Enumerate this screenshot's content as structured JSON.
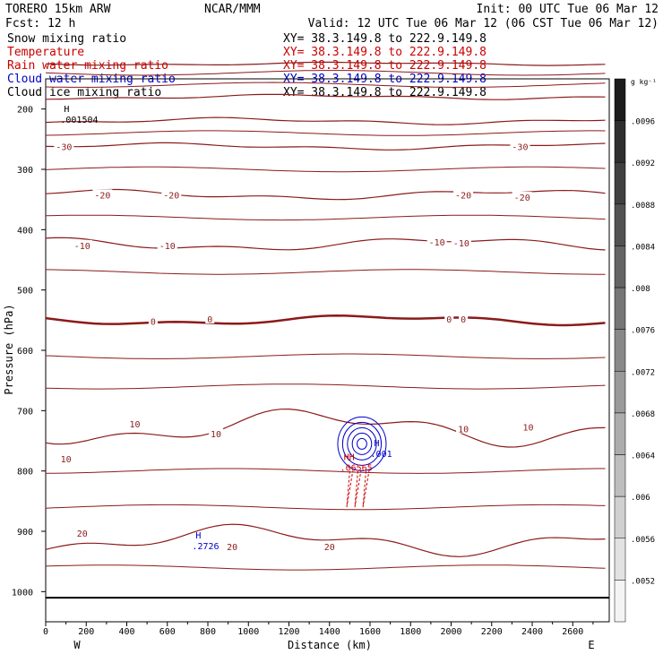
{
  "header": {
    "model": "TORERO  15km ARW",
    "institution": "NCAR/MMM",
    "init": "Init: 00 UTC Tue 06 Mar 12",
    "fcst": "Fcst:   12 h",
    "valid": "Valid: 12 UTC Tue 06 Mar 12 (06 CST Tue 06 Mar 12)"
  },
  "fields": [
    {
      "name": "Snow mixing ratio",
      "xy": "",
      "color": "#000000"
    },
    {
      "name": "Temperature",
      "xy": "XY=  38.3.149.8 to 222.9.149.8",
      "color": "#cc0000"
    },
    {
      "name": "Rain water mixing ratio",
      "xy": "XY=  38.3.149.8 to 222.9.149.8",
      "color": "#cc0000"
    },
    {
      "name": "Cloud water mixing ratio",
      "xy": "XY=  38.3.149.8 to 222.9.149.8",
      "color": "#0000cc"
    },
    {
      "name": "Cloud ice mixing ratio",
      "xy": "XY=  38.3.149.8 to 222.9.149.8",
      "color": "#000000"
    }
  ],
  "first_xy": "XY=  38.3.149.8 to 222.9.149.8",
  "chart_data": {
    "type": "cross-section contour",
    "xlabel": "Distance (km)",
    "ylabel": "Pressure (hPa)",
    "x_ticks": [
      0,
      200,
      400,
      600,
      800,
      1000,
      1200,
      1400,
      1600,
      1800,
      2000,
      2200,
      2400,
      2600
    ],
    "xlim": [
      0,
      2780
    ],
    "y_ticks": [
      200,
      300,
      400,
      500,
      600,
      700,
      800,
      900,
      1000
    ],
    "ylim": [
      1050,
      150
    ],
    "x_end_labels": [
      "W",
      "E"
    ],
    "temperature_labels": [
      {
        "text": "-30",
        "x": 90,
        "p": 262
      },
      {
        "text": "-30",
        "x": 2340,
        "p": 262
      },
      {
        "text": "-20",
        "x": 280,
        "p": 342
      },
      {
        "text": "-20",
        "x": 620,
        "p": 342
      },
      {
        "text": "-20",
        "x": 2060,
        "p": 342
      },
      {
        "text": "-20",
        "x": 2350,
        "p": 346
      },
      {
        "text": "-10",
        "x": 180,
        "p": 426
      },
      {
        "text": "-10",
        "x": 600,
        "p": 426
      },
      {
        "text": "-10",
        "x": 1930,
        "p": 420
      },
      {
        "text": "-10",
        "x": 2050,
        "p": 422
      },
      {
        "text": "0",
        "x": 530,
        "p": 552
      },
      {
        "text": "0",
        "x": 810,
        "p": 548
      },
      {
        "text": "0",
        "x": 1990,
        "p": 548
      },
      {
        "text": "0",
        "x": 2060,
        "p": 548
      },
      {
        "text": "10",
        "x": 440,
        "p": 722
      },
      {
        "text": "10",
        "x": 840,
        "p": 738
      },
      {
        "text": "10",
        "x": 2060,
        "p": 730
      },
      {
        "text": "10",
        "x": 2380,
        "p": 727
      },
      {
        "text": "10",
        "x": 100,
        "p": 780
      },
      {
        "text": "20",
        "x": 180,
        "p": 903
      },
      {
        "text": "20",
        "x": 920,
        "p": 925
      },
      {
        "text": "20",
        "x": 1400,
        "p": 925
      }
    ],
    "temperature_isotherms": [
      -60,
      -50,
      -40,
      -30,
      -20,
      -10,
      0,
      10,
      20
    ],
    "extrema": [
      {
        "field": "Snow mixing ratio",
        "symbol": "H",
        "value": ".001504",
        "x": 90,
        "p": 208
      },
      {
        "field": "Rain water mixing ratio",
        "symbol": "HH",
        "value": ".06565",
        "x": 1470,
        "p": 785
      },
      {
        "field": "Cloud water mixing ratio",
        "symbol": "H",
        "value": ".001",
        "x": 1620,
        "p": 762
      },
      {
        "field": "Cloud water mixing ratio",
        "symbol": "H",
        "value": ".2726",
        "x": 740,
        "p": 915
      }
    ],
    "colorbar": {
      "unit": "g kg⁻¹",
      "labels": [
        ".0096",
        ".0092",
        ".0088",
        ".0084",
        ".008",
        ".0076",
        ".0072",
        ".0068",
        ".0064",
        ".006",
        ".0056",
        ".0052"
      ],
      "shade_start": "#1c1c1c",
      "shade_end": "#f4f4f4"
    }
  }
}
